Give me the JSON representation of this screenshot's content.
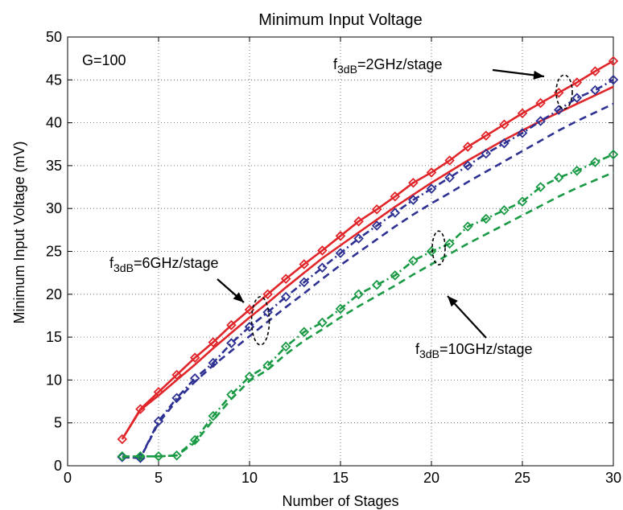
{
  "chart_data": {
    "type": "line",
    "title": "Minimum Input Voltage",
    "xlabel": "Number of Stages",
    "ylabel": "Minimum Input Voltage (mV)",
    "xlim": [
      0,
      30
    ],
    "ylim": [
      0,
      50
    ],
    "xticks": [
      0,
      5,
      10,
      15,
      20,
      25,
      30
    ],
    "yticks": [
      0,
      5,
      10,
      15,
      20,
      25,
      30,
      35,
      40,
      45,
      50
    ],
    "grid": true,
    "annotations": {
      "gain": "G=100",
      "f2": {
        "pre": "f",
        "sub": "3dB",
        "post": "=2GHz/stage"
      },
      "f6": {
        "pre": "f",
        "sub": "3dB",
        "post": "=6GHz/stage"
      },
      "f10": {
        "pre": "f",
        "sub": "3dB",
        "post": "=10GHz/stage"
      }
    },
    "series": [
      {
        "color": "#e0262a",
        "style": "solid",
        "markers": true,
        "x": [
          3,
          4,
          5,
          6,
          7,
          8,
          9,
          10,
          11,
          12,
          13,
          14,
          15,
          16,
          17,
          18,
          19,
          20,
          21,
          22,
          23,
          24,
          25,
          26,
          27,
          28,
          29,
          30
        ],
        "y": [
          3.1,
          6.6,
          8.6,
          10.6,
          12.6,
          14.4,
          16.4,
          18.2,
          20.0,
          21.8,
          23.5,
          25.1,
          26.8,
          28.5,
          29.9,
          31.4,
          33.0,
          34.2,
          35.6,
          37.2,
          38.5,
          39.8,
          41.1,
          42.3,
          43.5,
          44.7,
          46.0,
          47.2
        ]
      },
      {
        "color": "#e0262a",
        "style": "solid",
        "markers": false,
        "x": [
          3,
          4,
          5,
          6,
          7,
          8,
          9,
          10,
          11,
          12,
          13,
          14,
          15,
          16,
          17,
          18,
          19,
          20,
          21,
          22,
          23,
          24,
          25,
          26,
          27,
          28,
          29,
          30
        ],
        "y": [
          3.1,
          6.5,
          8.2,
          10.0,
          11.8,
          13.7,
          15.5,
          17.3,
          19.0,
          20.8,
          22.5,
          24.2,
          25.7,
          27.2,
          28.7,
          30.2,
          31.6,
          33.0,
          34.3,
          35.6,
          36.8,
          38.0,
          39.1,
          40.2,
          41.2,
          42.2,
          43.2,
          44.2
        ]
      },
      {
        "color": "#2e3192",
        "style": "dash-dot",
        "markers": true,
        "x": [
          3,
          4,
          5,
          6,
          7,
          8,
          9,
          10,
          11,
          12,
          13,
          14,
          15,
          16,
          17,
          18,
          19,
          20,
          21,
          22,
          23,
          24,
          25,
          26,
          27,
          28,
          29,
          30
        ],
        "y": [
          1.0,
          0.9,
          5.2,
          7.9,
          10.2,
          12.0,
          14.3,
          16.2,
          17.9,
          19.7,
          21.4,
          23.1,
          24.8,
          26.5,
          28.0,
          29.5,
          31.0,
          32.3,
          33.6,
          35.0,
          36.4,
          37.6,
          38.8,
          40.2,
          41.5,
          42.9,
          43.8,
          45.0
        ]
      },
      {
        "color": "#2e3192",
        "style": "dashed",
        "markers": false,
        "x": [
          3,
          4,
          5,
          6,
          7,
          8,
          9,
          10,
          11,
          12,
          13,
          14,
          15,
          16,
          17,
          18,
          19,
          20,
          21,
          22,
          23,
          24,
          25,
          26,
          27,
          28,
          29,
          30
        ],
        "y": [
          1.0,
          0.9,
          5.0,
          7.6,
          9.8,
          11.7,
          13.4,
          15.1,
          16.8,
          18.5,
          20.1,
          21.8,
          23.4,
          24.9,
          26.4,
          27.9,
          29.3,
          30.6,
          31.8,
          33.1,
          34.3,
          35.5,
          36.7,
          37.9,
          39.1,
          40.2,
          41.2,
          42.2
        ]
      },
      {
        "color": "#1a9a45",
        "style": "dash-dot",
        "markers": true,
        "x": [
          3,
          4,
          5,
          6,
          7,
          8,
          9,
          10,
          11,
          12,
          13,
          14,
          15,
          16,
          17,
          18,
          19,
          20,
          21,
          22,
          23,
          24,
          25,
          26,
          27,
          28,
          29,
          30
        ],
        "y": [
          1.1,
          1.1,
          1.1,
          1.2,
          3.0,
          5.8,
          8.3,
          10.4,
          11.7,
          13.9,
          15.6,
          16.7,
          18.3,
          20.0,
          21.1,
          22.2,
          23.9,
          25.0,
          25.9,
          27.9,
          28.8,
          29.8,
          30.8,
          32.5,
          33.6,
          34.4,
          35.4,
          36.3
        ]
      },
      {
        "color": "#1a9a45",
        "style": "dashed",
        "markers": false,
        "x": [
          3,
          4,
          5,
          6,
          7,
          8,
          9,
          10,
          11,
          12,
          13,
          14,
          15,
          16,
          17,
          18,
          19,
          20,
          21,
          22,
          23,
          24,
          25,
          26,
          27,
          28,
          29,
          30
        ],
        "y": [
          1.1,
          1.1,
          1.1,
          1.2,
          2.7,
          5.3,
          7.8,
          9.9,
          11.2,
          13.0,
          14.6,
          15.9,
          17.3,
          18.6,
          19.8,
          21.0,
          22.3,
          23.5,
          24.7,
          25.9,
          27.0,
          28.1,
          29.2,
          30.3,
          31.4,
          32.4,
          33.3,
          34.2
        ]
      }
    ]
  }
}
